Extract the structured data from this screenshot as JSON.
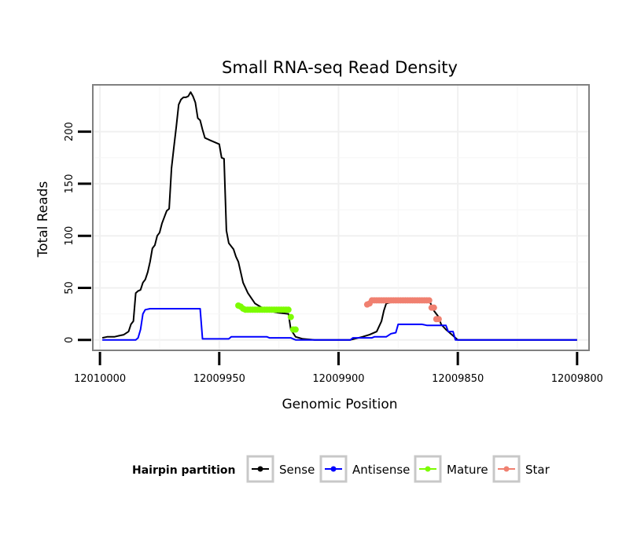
{
  "chart_data": {
    "type": "line",
    "title": "Small RNA-seq Read Density",
    "xlabel": "Genomic Position",
    "ylabel": "Total Reads",
    "xlim": [
      12010003,
      12009795
    ],
    "x_reversed": true,
    "ylim": [
      -10,
      245
    ],
    "x_ticks": [
      12010000,
      12009950,
      12009900,
      12009850,
      12009800
    ],
    "x_tick_labels": [
      "12010000",
      "12009950",
      "12009900",
      "12009850",
      "12009800"
    ],
    "y_ticks": [
      0,
      50,
      100,
      150,
      200
    ],
    "y_tick_labels": [
      "0",
      "50",
      "100",
      "150",
      "200"
    ],
    "grid": true,
    "legend": {
      "title": "Hairpin partition",
      "position": "bottom",
      "entries": [
        "Sense",
        "Antisense",
        "Mature",
        "Star"
      ]
    },
    "series": [
      {
        "name": "Sense",
        "color": "#000000",
        "style": "line",
        "points": [
          [
            12009999,
            2
          ],
          [
            12009997,
            3
          ],
          [
            12009994,
            3
          ],
          [
            12009992,
            4
          ],
          [
            12009990,
            5
          ],
          [
            12009988,
            8
          ],
          [
            12009987,
            15
          ],
          [
            12009986,
            18
          ],
          [
            12009985,
            45
          ],
          [
            12009984,
            47
          ],
          [
            12009983,
            48
          ],
          [
            12009982,
            55
          ],
          [
            12009981,
            58
          ],
          [
            12009980,
            65
          ],
          [
            12009979,
            75
          ],
          [
            12009978,
            88
          ],
          [
            12009977,
            91
          ],
          [
            12009976,
            100
          ],
          [
            12009975,
            103
          ],
          [
            12009974,
            112
          ],
          [
            12009973,
            118
          ],
          [
            12009972,
            124
          ],
          [
            12009971,
            126
          ],
          [
            12009970,
            165
          ],
          [
            12009969,
            185
          ],
          [
            12009968,
            205
          ],
          [
            12009967,
            226
          ],
          [
            12009966,
            231
          ],
          [
            12009965,
            233
          ],
          [
            12009964,
            233
          ],
          [
            12009963,
            234
          ],
          [
            12009962,
            238
          ],
          [
            12009961,
            234
          ],
          [
            12009960,
            228
          ],
          [
            12009959,
            213
          ],
          [
            12009958,
            211
          ],
          [
            12009957,
            202
          ],
          [
            12009956,
            194
          ],
          [
            12009955,
            193
          ],
          [
            12009954,
            192
          ],
          [
            12009952,
            190
          ],
          [
            12009950,
            188
          ],
          [
            12009949,
            175
          ],
          [
            12009948,
            174
          ],
          [
            12009947,
            105
          ],
          [
            12009946,
            93
          ],
          [
            12009945,
            90
          ],
          [
            12009944,
            87
          ],
          [
            12009943,
            80
          ],
          [
            12009942,
            75
          ],
          [
            12009940,
            55
          ],
          [
            12009938,
            45
          ],
          [
            12009935,
            35
          ],
          [
            12009930,
            28
          ],
          [
            12009925,
            26
          ],
          [
            12009921,
            25
          ],
          [
            12009920,
            10
          ],
          [
            12009918,
            3
          ],
          [
            12009915,
            1
          ],
          [
            12009910,
            0
          ],
          [
            12009895,
            0
          ],
          [
            12009890,
            3
          ],
          [
            12009887,
            5
          ],
          [
            12009884,
            8
          ],
          [
            12009882,
            18
          ],
          [
            12009881,
            28
          ],
          [
            12009880,
            35
          ],
          [
            12009875,
            38
          ],
          [
            12009870,
            38
          ],
          [
            12009865,
            38
          ],
          [
            12009862,
            38
          ],
          [
            12009860,
            28
          ],
          [
            12009858,
            22
          ],
          [
            12009857,
            15
          ],
          [
            12009855,
            10
          ],
          [
            12009852,
            4
          ],
          [
            12009850,
            0
          ],
          [
            12009845,
            0
          ],
          [
            12009800,
            0
          ]
        ]
      },
      {
        "name": "Antisense",
        "color": "#0000ff",
        "style": "line",
        "points": [
          [
            12009999,
            0
          ],
          [
            12009985,
            0
          ],
          [
            12009984,
            2
          ],
          [
            12009983,
            10
          ],
          [
            12009982,
            25
          ],
          [
            12009981,
            29
          ],
          [
            12009979,
            30
          ],
          [
            12009970,
            30
          ],
          [
            12009960,
            30
          ],
          [
            12009958,
            30
          ],
          [
            12009957,
            1
          ],
          [
            12009950,
            1
          ],
          [
            12009946,
            1
          ],
          [
            12009945,
            3
          ],
          [
            12009935,
            3
          ],
          [
            12009930,
            3
          ],
          [
            12009929,
            2
          ],
          [
            12009920,
            2
          ],
          [
            12009919,
            1
          ],
          [
            12009918,
            0
          ],
          [
            12009895,
            0
          ],
          [
            12009894,
            2
          ],
          [
            12009886,
            2
          ],
          [
            12009885,
            3
          ],
          [
            12009880,
            3
          ],
          [
            12009878,
            6
          ],
          [
            12009876,
            7
          ],
          [
            12009875,
            15
          ],
          [
            12009870,
            15
          ],
          [
            12009865,
            15
          ],
          [
            12009863,
            14
          ],
          [
            12009855,
            14
          ],
          [
            12009854,
            8
          ],
          [
            12009852,
            8
          ],
          [
            12009851,
            0
          ],
          [
            12009800,
            0
          ]
        ]
      },
      {
        "name": "Mature",
        "color": "#7cfc00",
        "style": "points",
        "points": [
          [
            12009942,
            33
          ],
          [
            12009941,
            32
          ],
          [
            12009940,
            30
          ],
          [
            12009939,
            29
          ],
          [
            12009938,
            29
          ],
          [
            12009937,
            29
          ],
          [
            12009936,
            29
          ],
          [
            12009935,
            29
          ],
          [
            12009934,
            29
          ],
          [
            12009933,
            29
          ],
          [
            12009932,
            29
          ],
          [
            12009931,
            29
          ],
          [
            12009930,
            29
          ],
          [
            12009929,
            29
          ],
          [
            12009928,
            29
          ],
          [
            12009927,
            29
          ],
          [
            12009926,
            29
          ],
          [
            12009925,
            29
          ],
          [
            12009924,
            29
          ],
          [
            12009923,
            29
          ],
          [
            12009922,
            29
          ],
          [
            12009921,
            29
          ],
          [
            12009920,
            22
          ],
          [
            12009919,
            10
          ],
          [
            12009918,
            10
          ]
        ]
      },
      {
        "name": "Star",
        "color": "#f08070",
        "style": "points",
        "points": [
          [
            12009888,
            34
          ],
          [
            12009887,
            35
          ],
          [
            12009886,
            38
          ],
          [
            12009885,
            38
          ],
          [
            12009884,
            38
          ],
          [
            12009883,
            38
          ],
          [
            12009882,
            38
          ],
          [
            12009881,
            38
          ],
          [
            12009880,
            38
          ],
          [
            12009879,
            38
          ],
          [
            12009878,
            38
          ],
          [
            12009877,
            38
          ],
          [
            12009876,
            38
          ],
          [
            12009875,
            38
          ],
          [
            12009874,
            38
          ],
          [
            12009873,
            38
          ],
          [
            12009872,
            38
          ],
          [
            12009871,
            38
          ],
          [
            12009870,
            38
          ],
          [
            12009869,
            38
          ],
          [
            12009868,
            38
          ],
          [
            12009867,
            38
          ],
          [
            12009866,
            38
          ],
          [
            12009865,
            38
          ],
          [
            12009864,
            38
          ],
          [
            12009863,
            38
          ],
          [
            12009862,
            38
          ],
          [
            12009861,
            31
          ],
          [
            12009860,
            31
          ],
          [
            12009859,
            20
          ],
          [
            12009858,
            20
          ]
        ]
      }
    ]
  }
}
